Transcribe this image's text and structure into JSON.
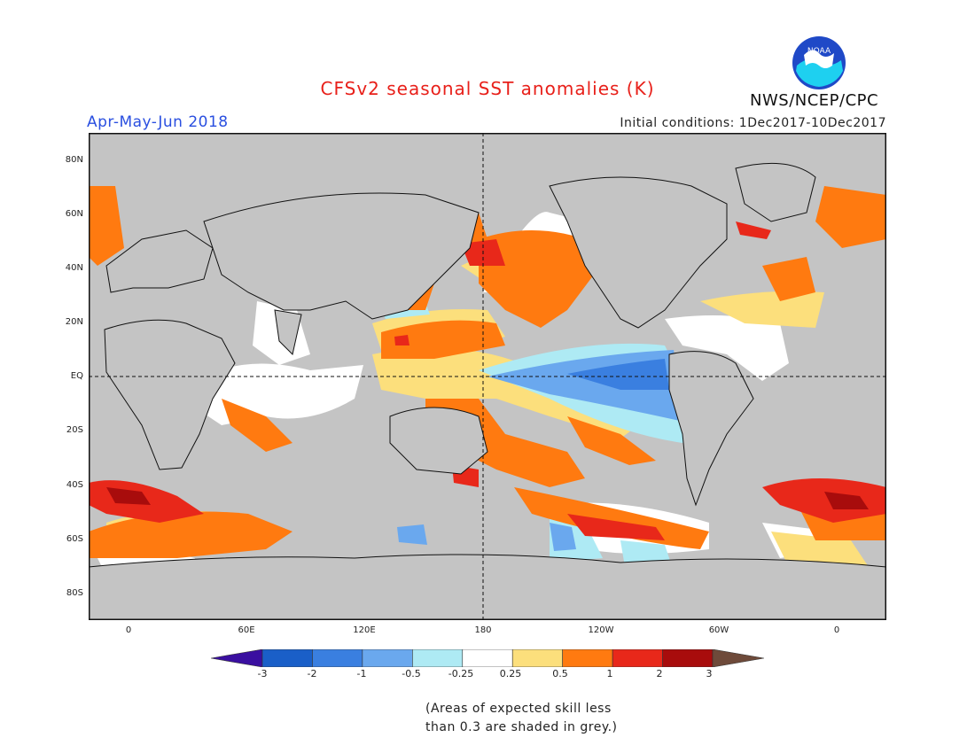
{
  "header": {
    "title": "CFSv2 seasonal SST anomalies (K)",
    "season": "Apr-May-Jun 2018",
    "initial_conditions": "Initial conditions: 1Dec2017-10Dec2017",
    "agency": "NWS/NCEP/CPC",
    "logo_text": "NOAA"
  },
  "axes": {
    "lat_labels": [
      "80N",
      "60N",
      "40N",
      "20N",
      "EQ",
      "20S",
      "40S",
      "60S",
      "80S"
    ],
    "lon_labels": [
      "0",
      "60E",
      "120E",
      "180",
      "120W",
      "60W",
      "0"
    ]
  },
  "colorbar": {
    "ticks": [
      "-3",
      "-2",
      "-1",
      "-0.5",
      "-0.25",
      "0.25",
      "0.5",
      "1",
      "2",
      "3"
    ],
    "colors": {
      "lt_-3": "#3a0fa0",
      "-3_-2": "#1a5fc8",
      "-2_-1": "#3a7fe0",
      "-1_-0.5": "#6aa8ee",
      "-0.5_-0.25": "#aeeaf4",
      "-0.25_0.25": "#ffffff",
      "0.25_0.5": "#fcdf7c",
      "0.5_1": "#ff7a10",
      "1_2": "#e8281a",
      "2_3": "#a80c0c",
      "gt_3": "#6e4a3a"
    },
    "low_skill_color": "#c4c4c4"
  },
  "footnote": {
    "line1": "(Areas of expected skill less",
    "line2": "than 0.3 are shaded in grey.)"
  }
}
